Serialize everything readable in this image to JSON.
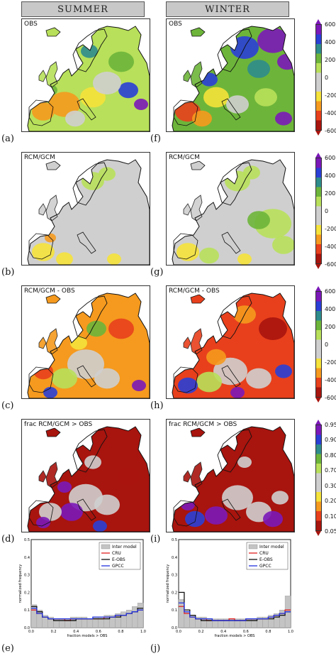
{
  "columns": {
    "left": "SUMMER",
    "right": "WINTER"
  },
  "rows": [
    {
      "title": "OBS",
      "left_label": "(a)",
      "right_label": "(f)"
    },
    {
      "title": "RCM/GCM",
      "left_label": "(b)",
      "right_label": "(g)"
    },
    {
      "title": "RCM/GCM - OBS",
      "left_label": "(c)",
      "right_label": "(h)"
    },
    {
      "title": "frac RCM/GCM > OBS",
      "left_label": "(d)",
      "right_label": "(i)"
    }
  ],
  "colorbars": [
    {
      "ticks": [
        "600",
        "400",
        "200",
        "0",
        "-200",
        "-400",
        "-600"
      ]
    },
    {
      "ticks": [
        "600",
        "400",
        "200",
        "0",
        "-200",
        "-400",
        "-600"
      ]
    },
    {
      "ticks": [
        "600",
        "400",
        "200",
        "0",
        "-200",
        "-400",
        "-600"
      ]
    },
    {
      "ticks": [
        "0.95",
        "0.90",
        "0.80",
        "0.70",
        "0.30",
        "0.20",
        "0.10",
        "0.05"
      ]
    }
  ],
  "colors": {
    "purple": "#7b18b8",
    "blue": "#2a3fd6",
    "teal": "#2e8c8c",
    "green": "#6db53a",
    "lightgreen": "#b8e05a",
    "grey": "#cfcfcf",
    "yellow": "#f5e23a",
    "orange": "#f59a1e",
    "red": "#e8401c",
    "darkred": "#a8140e"
  },
  "chart_data": [
    {
      "type": "bar",
      "panel": "(e)",
      "ylabel": "normalized frequency",
      "xlabel": "fraction models > OBS",
      "xlim": [
        0.0,
        1.0
      ],
      "ylim": [
        0,
        0.5
      ],
      "xticks": [
        "0.0",
        "0.2",
        "0.4",
        "0.6",
        "0.8",
        "1.0"
      ],
      "yticks": [
        "0.0",
        "0.1",
        "0.2",
        "0.3",
        "0.4",
        "0.5"
      ],
      "legend": [
        "Inter model",
        "CRU",
        "E-OBS",
        "GPCC"
      ],
      "legend_position": "top-right",
      "series": [
        {
          "name": "Inter model",
          "values": [
            0.13,
            0.1,
            0.07,
            0.06,
            0.05,
            0.05,
            0.05,
            0.06,
            0.06,
            0.06,
            0.05,
            0.06,
            0.06,
            0.07,
            0.07,
            0.08,
            0.09,
            0.1,
            0.12,
            0.14
          ]
        },
        {
          "name": "CRU",
          "values": [
            0.1,
            0.08,
            0.06,
            0.05,
            0.05,
            0.05,
            0.04,
            0.05,
            0.05,
            0.05,
            0.05,
            0.05,
            0.05,
            0.06,
            0.06,
            0.07,
            0.07,
            0.08,
            0.09,
            0.1
          ]
        },
        {
          "name": "E-OBS",
          "values": [
            0.12,
            0.09,
            0.06,
            0.05,
            0.04,
            0.04,
            0.04,
            0.04,
            0.05,
            0.05,
            0.05,
            0.05,
            0.05,
            0.05,
            0.06,
            0.06,
            0.07,
            0.08,
            0.09,
            0.11
          ]
        },
        {
          "name": "GPCC",
          "values": [
            0.11,
            0.08,
            0.06,
            0.05,
            0.05,
            0.05,
            0.05,
            0.05,
            0.05,
            0.05,
            0.05,
            0.06,
            0.06,
            0.06,
            0.06,
            0.07,
            0.07,
            0.08,
            0.09,
            0.1
          ]
        }
      ]
    },
    {
      "type": "bar",
      "panel": "(j)",
      "ylabel": "normalized frequency",
      "xlabel": "fraction models > OBS",
      "xlim": [
        0.0,
        1.0
      ],
      "ylim": [
        0,
        0.5
      ],
      "xticks": [
        "0.0",
        "0.2",
        "0.4",
        "0.6",
        "0.8",
        "1.0"
      ],
      "yticks": [
        "0.0",
        "0.1",
        "0.2",
        "0.3",
        "0.4",
        "0.5"
      ],
      "legend": [
        "Inter model",
        "CRU",
        "E-OBS",
        "GPCC"
      ],
      "legend_position": "top-right",
      "series": [
        {
          "name": "Inter model",
          "values": [
            0.16,
            0.09,
            0.07,
            0.06,
            0.06,
            0.05,
            0.05,
            0.05,
            0.05,
            0.05,
            0.05,
            0.05,
            0.05,
            0.05,
            0.06,
            0.06,
            0.07,
            0.08,
            0.1,
            0.18
          ]
        },
        {
          "name": "CRU",
          "values": [
            0.12,
            0.08,
            0.06,
            0.05,
            0.05,
            0.04,
            0.04,
            0.04,
            0.04,
            0.05,
            0.04,
            0.04,
            0.05,
            0.05,
            0.05,
            0.05,
            0.06,
            0.07,
            0.08,
            0.1
          ]
        },
        {
          "name": "E-OBS",
          "values": [
            0.2,
            0.1,
            0.07,
            0.05,
            0.04,
            0.04,
            0.04,
            0.04,
            0.04,
            0.04,
            0.04,
            0.04,
            0.04,
            0.04,
            0.05,
            0.05,
            0.05,
            0.06,
            0.07,
            0.09
          ]
        },
        {
          "name": "GPCC",
          "values": [
            0.14,
            0.09,
            0.06,
            0.05,
            0.05,
            0.05,
            0.04,
            0.04,
            0.04,
            0.04,
            0.04,
            0.04,
            0.05,
            0.05,
            0.05,
            0.05,
            0.06,
            0.07,
            0.08,
            0.09
          ]
        }
      ],
      "bottom_label": "(j)"
    }
  ],
  "hist_labels": {
    "left": "(e)",
    "right": "(j)"
  }
}
